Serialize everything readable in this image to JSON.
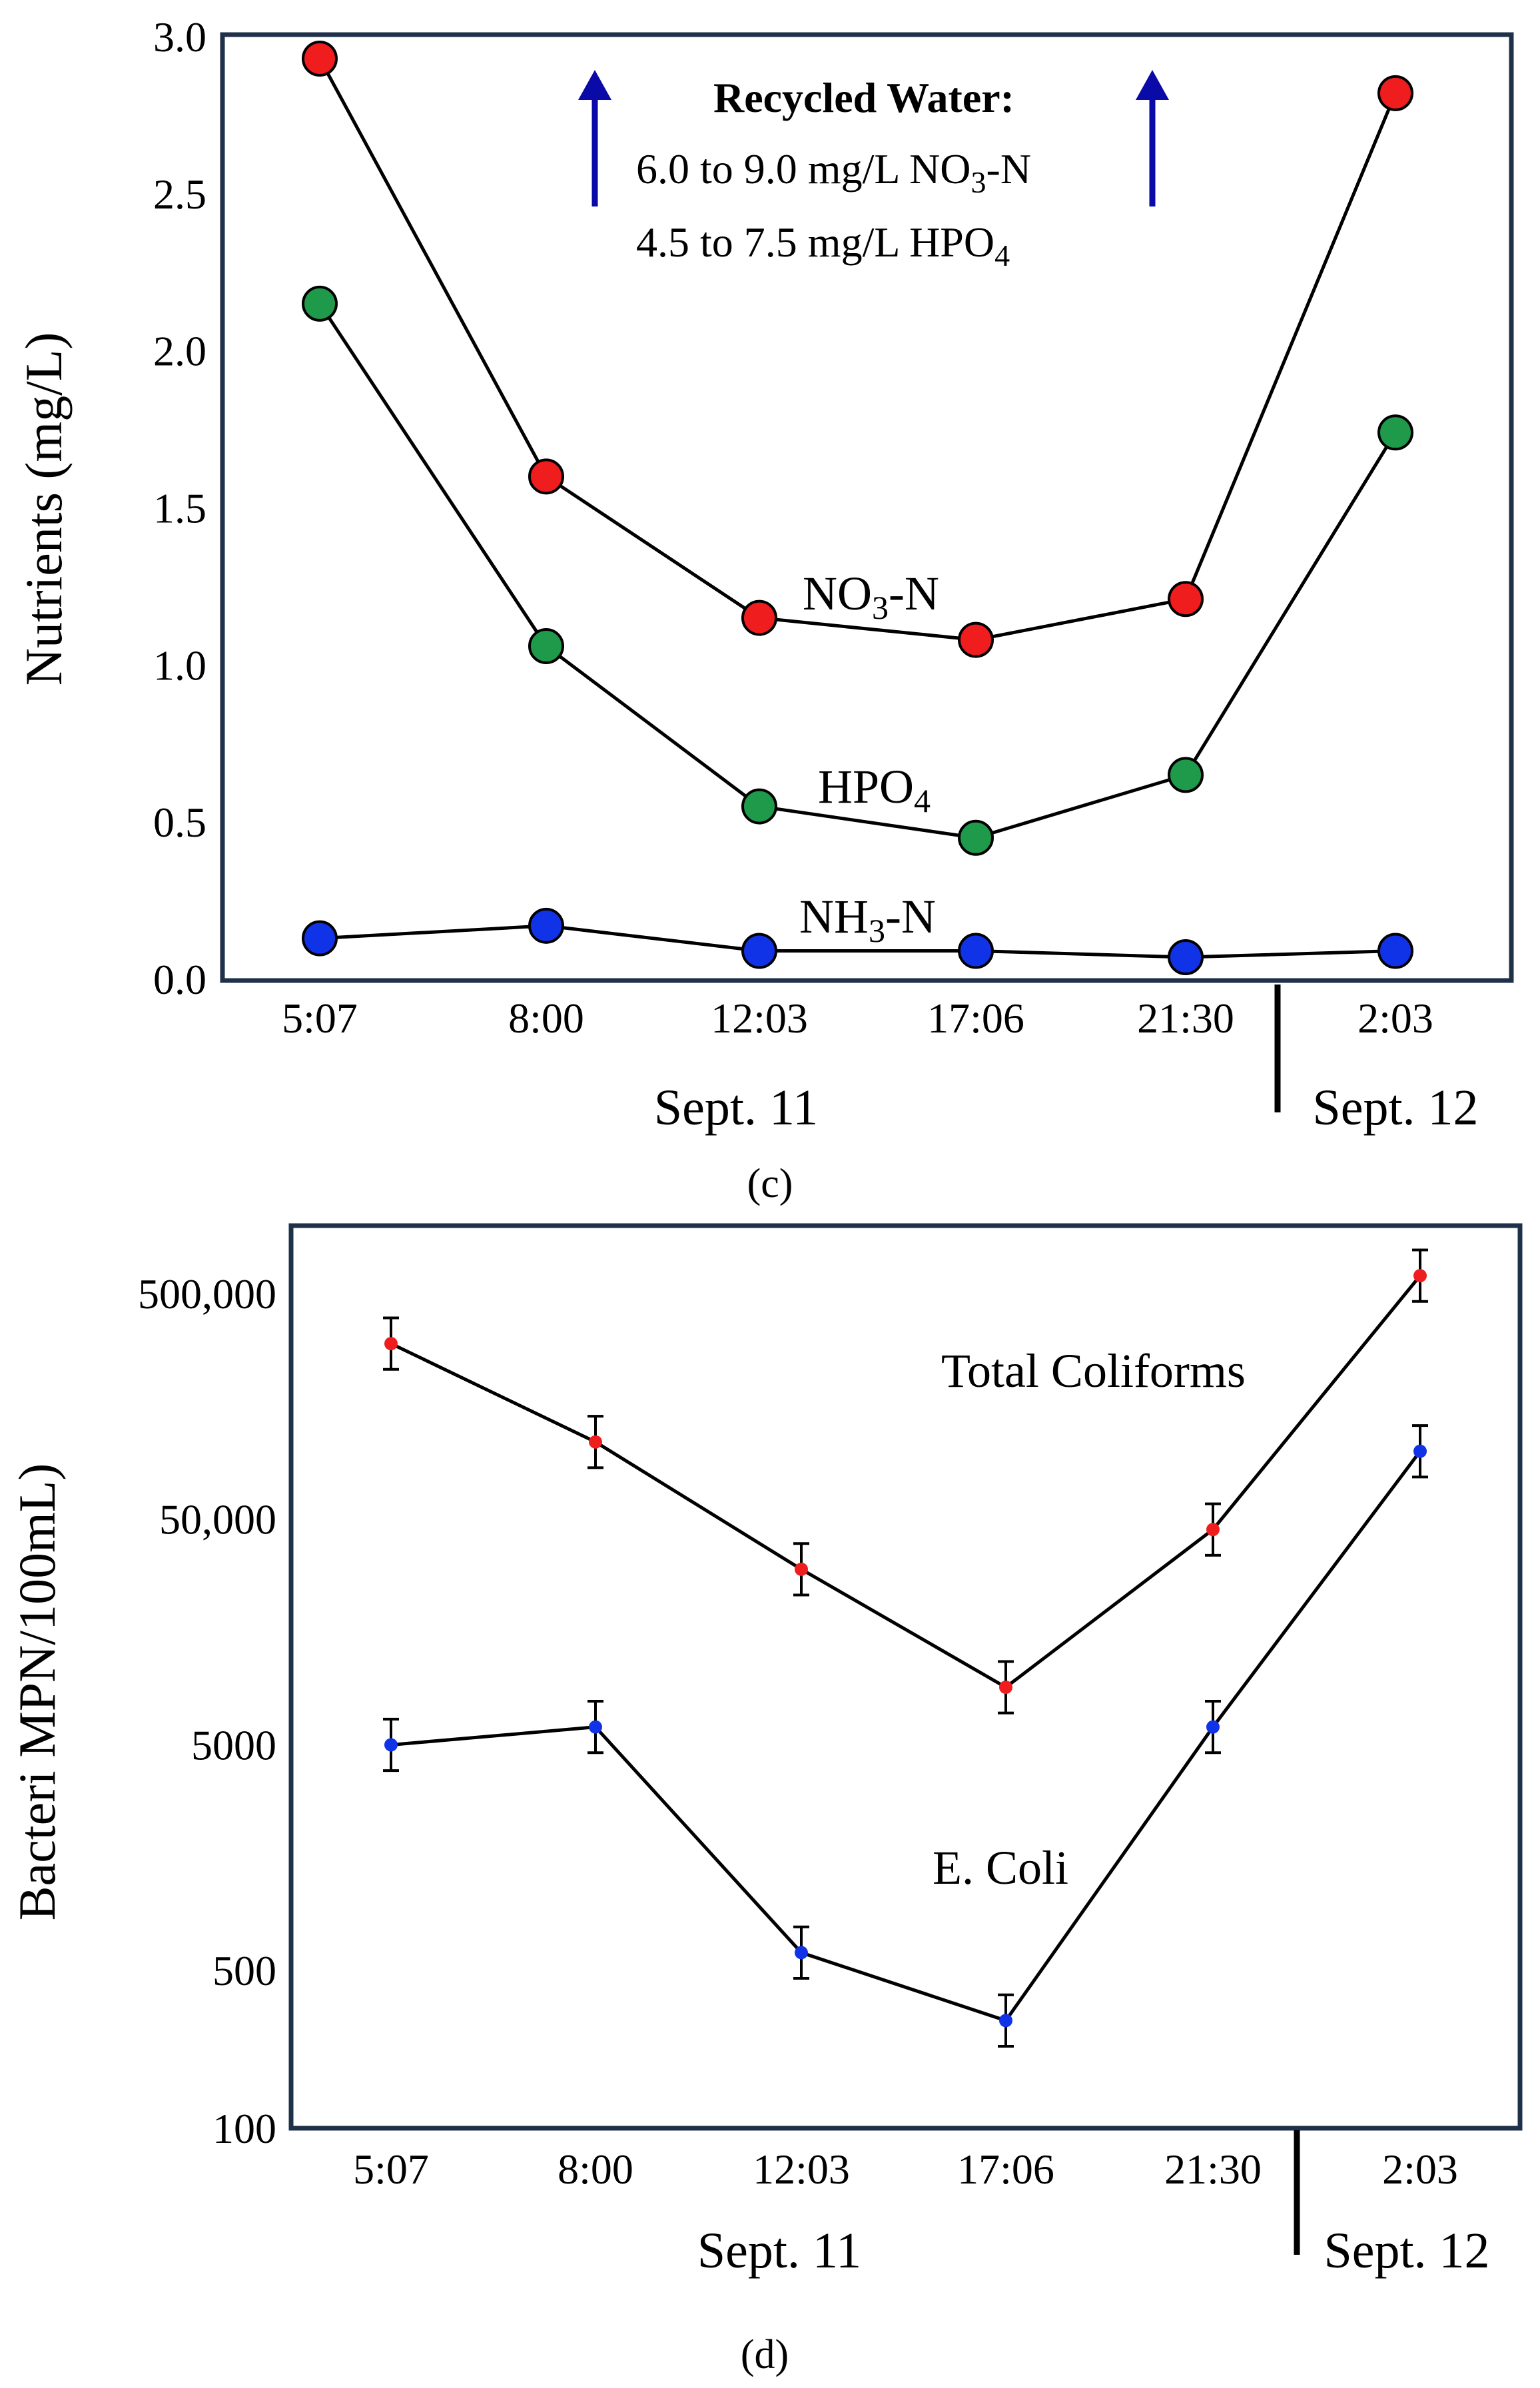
{
  "figure": {
    "background": "#ffffff",
    "frame_color": "#1f3149",
    "line_color": "#000000",
    "annotation_arrow_color": "#0a0aa8"
  },
  "chart_data": [
    {
      "panel_label": "(c)",
      "type": "line",
      "ylabel": "Nutrients  (mg/L)",
      "ylim": [
        0,
        3.0
      ],
      "yticks": [
        "0.0",
        "0.5",
        "1.0",
        "1.5",
        "2.0",
        "2.5",
        "3.0"
      ],
      "ytick_values": [
        0,
        0.5,
        1.0,
        1.5,
        2.0,
        2.5,
        3.0
      ],
      "categories": [
        "5:07",
        "8:00",
        "12:03",
        "17:06",
        "21:30",
        "2:03"
      ],
      "date_labels": [
        "Sept. 11",
        "Sept. 12"
      ],
      "series": [
        {
          "name": "NO3-N",
          "label_main": "NO",
          "label_sub": "3",
          "label_rest": "-N",
          "color": "#ef1d1d",
          "values": [
            2.93,
            1.6,
            1.15,
            1.08,
            1.21,
            2.82
          ]
        },
        {
          "name": "HPO4",
          "label_main": "HPO",
          "label_sub": "4",
          "label_rest": "",
          "color": "#1f9a4a",
          "values": [
            2.15,
            1.06,
            0.55,
            0.45,
            0.65,
            1.74
          ]
        },
        {
          "name": "NH3-N",
          "label_main": "NH",
          "label_sub": "3",
          "label_rest": "-N",
          "color": "#1033e8",
          "values": [
            0.13,
            0.17,
            0.09,
            0.09,
            0.07,
            0.09
          ]
        }
      ],
      "annotation": {
        "title": "Recycled Water:",
        "line1_main": "6.0 to 9.0 mg/L NO",
        "line1_sub": "3",
        "line1_rest": "-N",
        "line2_main": "4.5 to 7.5 mg/L HPO",
        "line2_sub": "4"
      }
    },
    {
      "panel_label": "(d)",
      "type": "line",
      "ylabel": "Bacteri MPN/100mL)",
      "yscale": "log",
      "ylim": [
        100,
        1000000
      ],
      "yticks": [
        "100",
        "500",
        "5000",
        "50,000",
        "500,000"
      ],
      "ytick_values": [
        100,
        500,
        5000,
        50000,
        500000
      ],
      "categories": [
        "5:07",
        "8:00",
        "12:03",
        "17:06",
        "21:30",
        "2:03"
      ],
      "date_labels": [
        "Sept. 11",
        "Sept. 12"
      ],
      "series": [
        {
          "name": "Total Coliforms",
          "color": "#ef1d1d",
          "values": [
            300000,
            110000,
            30000,
            9000,
            45000,
            600000
          ],
          "error_factor": 1.3
        },
        {
          "name": "E. Coli",
          "color": "#1033e8",
          "values": [
            5000,
            6000,
            600,
            300,
            6000,
            100000
          ],
          "error_factor": 1.3
        }
      ]
    }
  ]
}
